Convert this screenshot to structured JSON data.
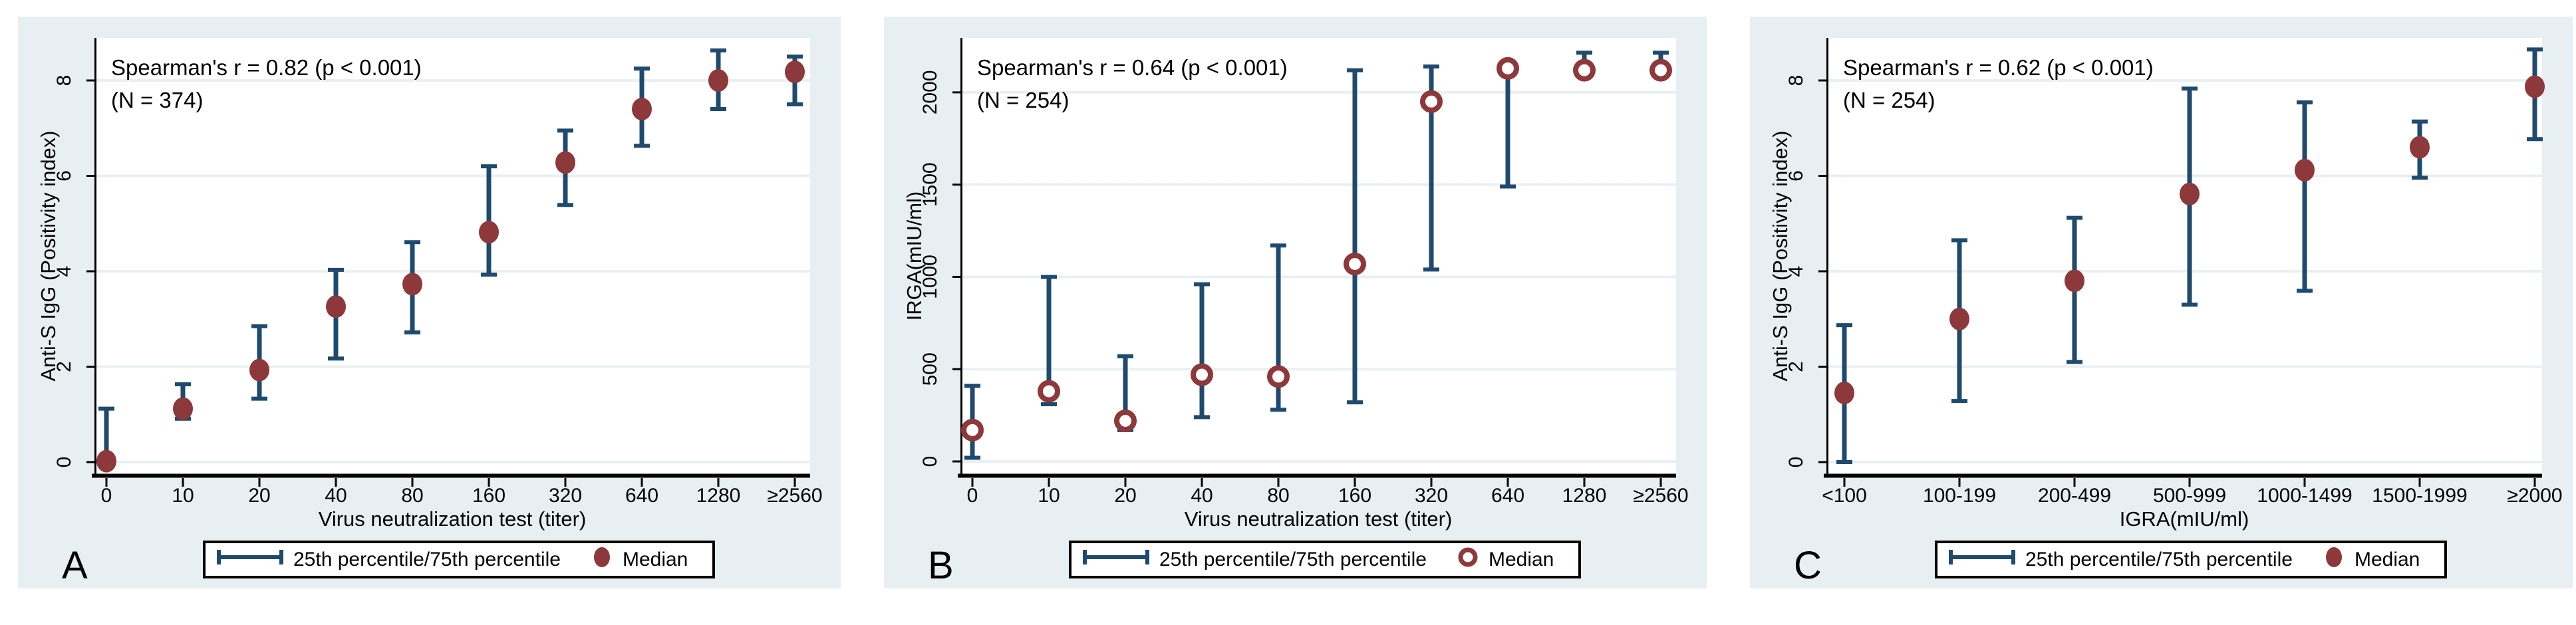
{
  "colors": {
    "whisker": "#1F4A6E",
    "median": "#8D383A",
    "panel_background": "#E7EFF2",
    "plot_background": "#FFFFFF",
    "gridline": "#E9F0F3",
    "axis": "#000000",
    "legend_border": "#000000"
  },
  "chart_data": [
    {
      "type": "scatter",
      "panel_label": "A",
      "title": "Spearman's r = 0.82 (p < 0.001)",
      "subtitle": "(N = 374)",
      "xlabel": "Virus neutralization test (titer)",
      "ylabel": "Anti-S IgG (Positivity index)",
      "categories": [
        "0",
        "10",
        "20",
        "40",
        "80",
        "160",
        "320",
        "640",
        "1280",
        "≥2560"
      ],
      "yticks": [
        0,
        2,
        4,
        6,
        8
      ],
      "ylim": [
        -0.25,
        8.9
      ],
      "grid": "on",
      "legend_position": "bottom",
      "median_marker": "filled-circle",
      "legend": [
        "25th percentile/75th percentile",
        "Median"
      ],
      "series": [
        {
          "name": "median",
          "values": [
            0.02,
            1.12,
            1.93,
            3.26,
            3.73,
            4.82,
            6.28,
            7.4,
            8.0,
            8.18
          ]
        },
        {
          "name": "p25",
          "values": [
            0.0,
            0.91,
            1.33,
            2.17,
            2.72,
            3.93,
            5.39,
            6.63,
            7.4,
            7.5
          ]
        },
        {
          "name": "p75",
          "values": [
            1.12,
            1.63,
            2.85,
            4.03,
            4.61,
            6.2,
            6.95,
            8.25,
            8.63,
            8.5
          ]
        }
      ]
    },
    {
      "type": "scatter",
      "panel_label": "B",
      "title": "Spearman's r = 0.64 (p < 0.001)",
      "subtitle": "(N = 254)",
      "xlabel": "Virus neutralization test (titer)",
      "ylabel": "IRGA(mIU/ml)",
      "categories": [
        "0",
        "10",
        "20",
        "40",
        "80",
        "160",
        "320",
        "640",
        "1280",
        "≥2560"
      ],
      "yticks": [
        0,
        500,
        1000,
        1500,
        2000
      ],
      "ylim": [
        -70,
        2295
      ],
      "grid": "on",
      "legend_position": "bottom",
      "median_marker": "open-circle",
      "legend": [
        "25th percentile/75th percentile",
        "Median"
      ],
      "series": [
        {
          "name": "median",
          "values": [
            170,
            380,
            220,
            470,
            460,
            1070,
            1950,
            2130,
            2120,
            2120
          ]
        },
        {
          "name": "p25",
          "values": [
            20,
            310,
            170,
            240,
            280,
            320,
            1040,
            1490,
            2110,
            2110
          ]
        },
        {
          "name": "p75",
          "values": [
            410,
            1000,
            570,
            960,
            1170,
            2120,
            2140,
            2140,
            2215,
            2215
          ]
        }
      ]
    },
    {
      "type": "scatter",
      "panel_label": "C",
      "title": "Spearman's r = 0.62 (p < 0.001)",
      "subtitle": "(N = 254)",
      "xlabel": "IGRA(mIU/ml)",
      "ylabel": "Anti-S IgG (Positivity index)",
      "categories": [
        "<100",
        "100-199",
        "200-499",
        "500-999",
        "1000-1499",
        "1500-1999",
        "≥2000"
      ],
      "yticks": [
        0,
        2,
        4,
        6,
        8
      ],
      "ylim": [
        -0.25,
        8.9
      ],
      "grid": "on",
      "legend_position": "bottom",
      "median_marker": "filled-circle",
      "legend": [
        "25th percentile/75th percentile",
        "Median"
      ],
      "series": [
        {
          "name": "median",
          "values": [
            1.45,
            3.0,
            3.8,
            5.62,
            6.12,
            6.6,
            7.87
          ]
        },
        {
          "name": "p25",
          "values": [
            0.0,
            1.28,
            2.1,
            3.3,
            3.59,
            5.96,
            6.77
          ]
        },
        {
          "name": "p75",
          "values": [
            2.87,
            4.65,
            5.12,
            7.83,
            7.54,
            7.14,
            8.65
          ]
        }
      ]
    }
  ]
}
